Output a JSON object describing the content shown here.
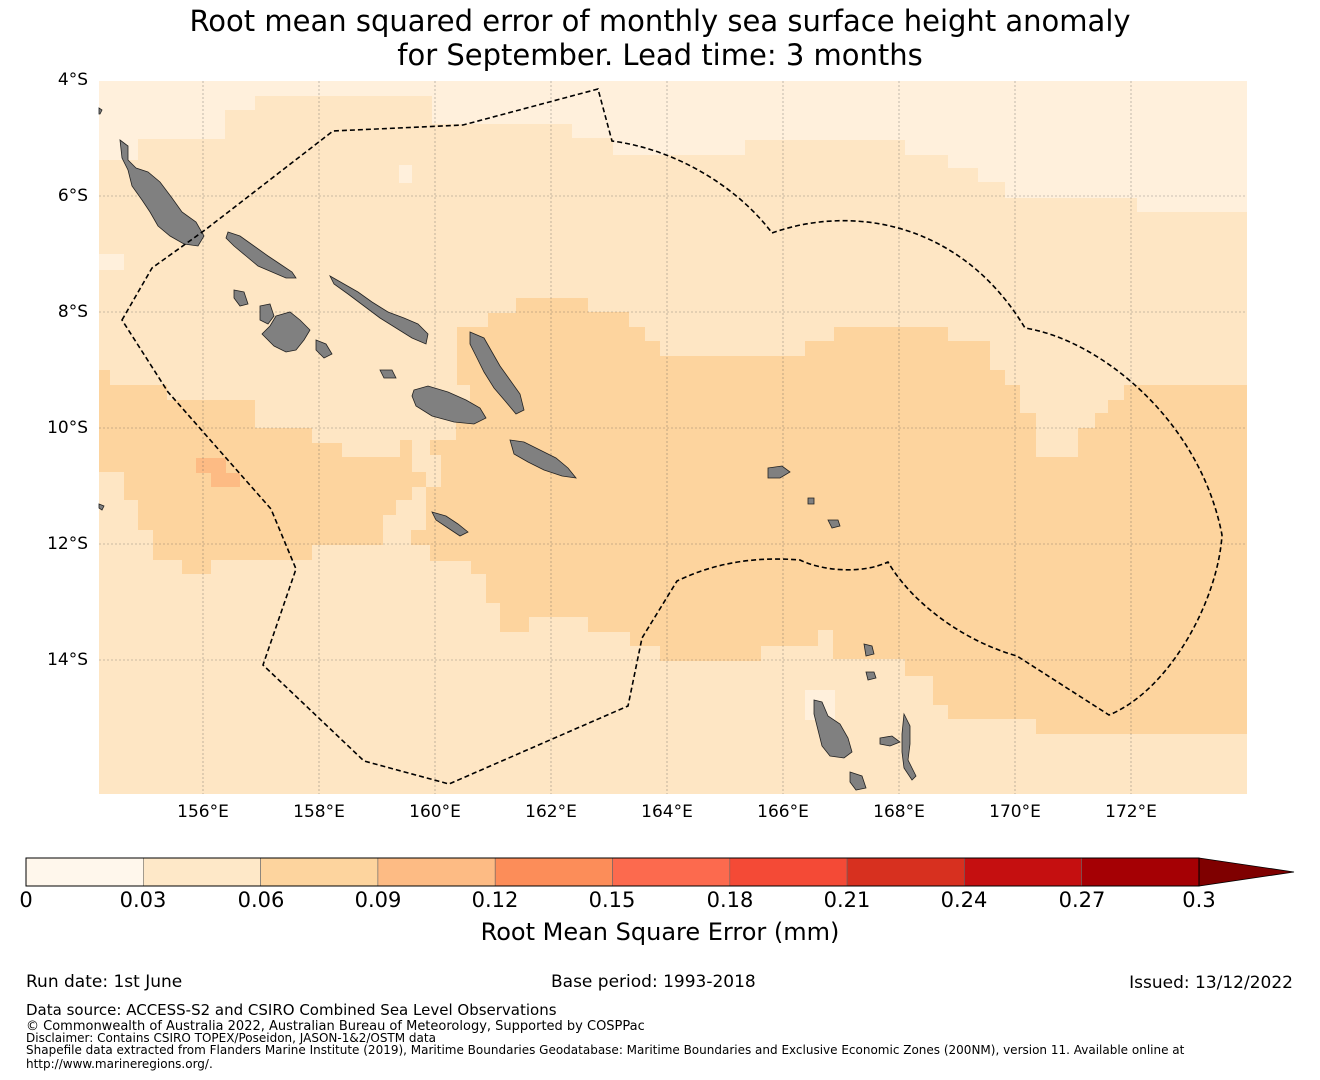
{
  "title": {
    "line1": "Root mean squared error of monthly sea surface height anomaly",
    "line2": "for September. Lead time: 3 months"
  },
  "map": {
    "lat_labels": [
      "4°S",
      "6°S",
      "8°S",
      "10°S",
      "12°S",
      "14°S"
    ],
    "lon_labels": [
      "156°E",
      "158°E",
      "160°E",
      "162°E",
      "164°E",
      "166°E",
      "168°E",
      "170°E",
      "172°E"
    ],
    "colors": {
      "ocean_low": "#fff0dc",
      "ocean_mid": "#fee6c4",
      "ocean_high": "#fdd49e",
      "ocean_peak": "#fdbb84",
      "land": "#808080",
      "eez_line": "#000000"
    }
  },
  "colorbar": {
    "tick_labels": [
      "0",
      "0.03",
      "0.06",
      "0.09",
      "0.12",
      "0.15",
      "0.18",
      "0.21",
      "0.24",
      "0.27",
      "0.3"
    ],
    "colors": [
      "#fff7ec",
      "#fee8c8",
      "#fdd49e",
      "#fdbb84",
      "#fc8d59",
      "#fc6a4e",
      "#f44a36",
      "#d7301f",
      "#c50f10",
      "#a50004",
      "#7f0000"
    ],
    "label": "Root Mean Square Error (mm)"
  },
  "footer": {
    "run_date": "Run date: 1st June",
    "base_period": "Base period: 1993-2018",
    "issued": "Issued: 13/12/2022",
    "data_source": "Data source: ACCESS-S2 and CSIRO Combined Sea Level Observations",
    "copyright": "© Commonwealth of Australia 2022, Australian Bureau of Meteorology, Supported by COSPPac",
    "disclaimer": "Disclaimer: Contains CSIRO TOPEX/Poseidon, JASON-1&2/OSTM data",
    "shapefile_line1": "Shapefile data extracted from Flanders Marine Institute (2019), Maritime Boundaries Geodatabase: Maritime Boundaries and Exclusive Economic Zones (200NM), version 11. Available online at",
    "shapefile_line2": "http://www.marineregions.org/."
  }
}
